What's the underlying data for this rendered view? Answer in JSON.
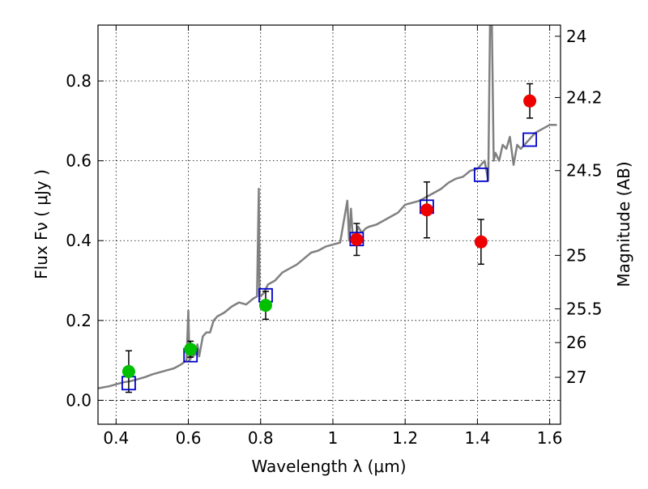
{
  "chart_data": {
    "type": "scatter",
    "xlabel": "Wavelength  λ (μm)",
    "ylabel": "Flux  Fν  ( μJy )",
    "ylabel_right": "Magnitude (AB)",
    "xlim": [
      0.35,
      1.63
    ],
    "ylim": [
      -0.06,
      0.94
    ],
    "grid": true,
    "x_ticks": [
      {
        "value": 0.4,
        "label": "0.4"
      },
      {
        "value": 0.6,
        "label": "0.6"
      },
      {
        "value": 0.8,
        "label": "0.8"
      },
      {
        "value": 1.0,
        "label": "1"
      },
      {
        "value": 1.2,
        "label": "1.2"
      },
      {
        "value": 1.4,
        "label": "1.4"
      },
      {
        "value": 1.6,
        "label": "1.6"
      }
    ],
    "y_ticks": [
      {
        "value": 0.0,
        "label": "0.0"
      },
      {
        "value": 0.2,
        "label": "0.2"
      },
      {
        "value": 0.4,
        "label": "0.4"
      },
      {
        "value": 0.6,
        "label": "0.6"
      },
      {
        "value": 0.8,
        "label": "0.8"
      }
    ],
    "right_ticks": [
      {
        "value": 27,
        "label": "27"
      },
      {
        "value": 26,
        "label": "26"
      },
      {
        "value": 25.5,
        "label": "25.5"
      },
      {
        "value": 25,
        "label": "25"
      },
      {
        "value": 24.5,
        "label": "24.5"
      },
      {
        "value": 24.2,
        "label": "24.2"
      },
      {
        "value": 24,
        "label": "24"
      }
    ],
    "zero_line": 0.0,
    "series": [
      {
        "color": "#00c000",
        "marker": "circle",
        "points": [
          {
            "x": 0.435,
            "y": 0.072,
            "err": 0.052
          },
          {
            "x": 0.606,
            "y": 0.128,
            "err": 0.02
          },
          {
            "x": 0.814,
            "y": 0.238,
            "err": 0.035
          }
        ]
      },
      {
        "color": "#ee0000",
        "marker": "circle",
        "points": [
          {
            "x": 1.066,
            "y": 0.403,
            "err": 0.04
          },
          {
            "x": 1.26,
            "y": 0.477,
            "err": 0.07
          },
          {
            "x": 1.41,
            "y": 0.397,
            "err": 0.056
          },
          {
            "x": 1.545,
            "y": 0.75,
            "err": 0.043
          }
        ]
      },
      {
        "color": "#0000cc",
        "marker": "open-square",
        "points": [
          {
            "x": 0.435,
            "y": 0.043
          },
          {
            "x": 0.606,
            "y": 0.113
          },
          {
            "x": 0.814,
            "y": 0.263
          },
          {
            "x": 1.066,
            "y": 0.404
          },
          {
            "x": 1.26,
            "y": 0.485
          },
          {
            "x": 1.41,
            "y": 0.565
          },
          {
            "x": 1.545,
            "y": 0.653
          }
        ]
      },
      {
        "color": "#808080",
        "marker": "line",
        "x": [
          0.35,
          0.38,
          0.4,
          0.42,
          0.44,
          0.46,
          0.48,
          0.5,
          0.52,
          0.54,
          0.56,
          0.58,
          0.595,
          0.6,
          0.603,
          0.61,
          0.62,
          0.625,
          0.63,
          0.64,
          0.65,
          0.66,
          0.67,
          0.68,
          0.7,
          0.72,
          0.74,
          0.76,
          0.78,
          0.79,
          0.795,
          0.797,
          0.8,
          0.81,
          0.82,
          0.84,
          0.86,
          0.88,
          0.9,
          0.92,
          0.94,
          0.96,
          0.98,
          1.0,
          1.02,
          1.04,
          1.045,
          1.05,
          1.055,
          1.06,
          1.07,
          1.08,
          1.09,
          1.1,
          1.12,
          1.14,
          1.16,
          1.18,
          1.2,
          1.22,
          1.24,
          1.26,
          1.28,
          1.3,
          1.32,
          1.34,
          1.36,
          1.38,
          1.4,
          1.42,
          1.43,
          1.435,
          1.44,
          1.445,
          1.45,
          1.46,
          1.47,
          1.48,
          1.49,
          1.5,
          1.51,
          1.52,
          1.54,
          1.56,
          1.58,
          1.6,
          1.62
        ],
        "y": [
          0.03,
          0.035,
          0.04,
          0.045,
          0.048,
          0.053,
          0.058,
          0.065,
          0.07,
          0.075,
          0.08,
          0.09,
          0.1,
          0.225,
          0.1,
          0.11,
          0.115,
          0.14,
          0.11,
          0.16,
          0.17,
          0.17,
          0.2,
          0.21,
          0.22,
          0.235,
          0.245,
          0.24,
          0.255,
          0.26,
          0.53,
          0.27,
          0.26,
          0.27,
          0.29,
          0.3,
          0.32,
          0.33,
          0.34,
          0.355,
          0.37,
          0.375,
          0.385,
          0.39,
          0.395,
          0.5,
          0.4,
          0.48,
          0.41,
          0.4,
          0.435,
          0.42,
          0.43,
          0.435,
          0.44,
          0.45,
          0.46,
          0.47,
          0.49,
          0.495,
          0.5,
          0.51,
          0.52,
          0.53,
          0.545,
          0.555,
          0.56,
          0.575,
          0.58,
          0.6,
          0.55,
          0.95,
          0.95,
          0.6,
          0.62,
          0.6,
          0.64,
          0.63,
          0.66,
          0.59,
          0.64,
          0.63,
          0.65,
          0.67,
          0.68,
          0.69,
          0.69
        ]
      }
    ]
  }
}
